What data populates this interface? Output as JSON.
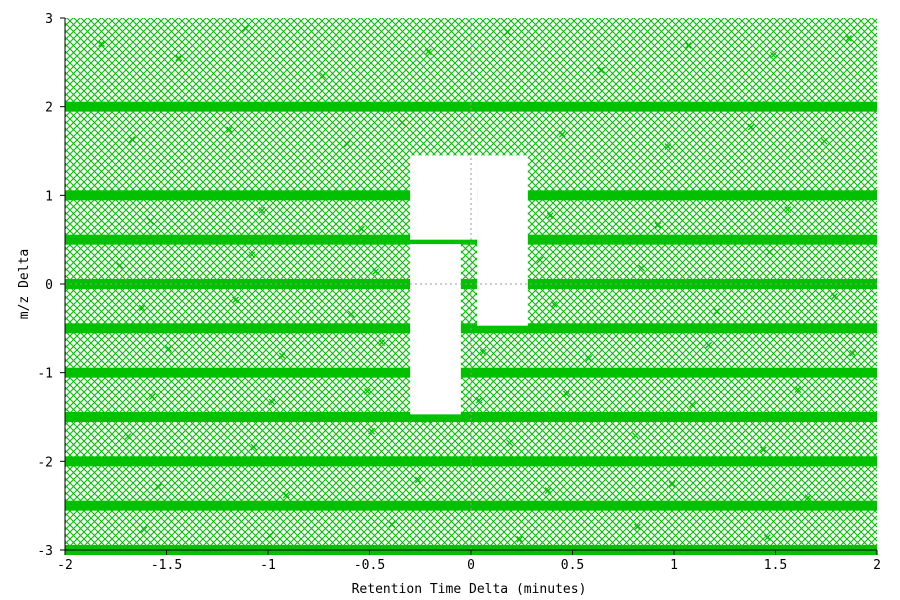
{
  "chart_data": {
    "type": "scatter",
    "title": "",
    "xlabel": "Retention Time Delta (minutes)",
    "ylabel": "m/z Delta",
    "xlim": [
      -2,
      2
    ],
    "ylim": [
      -3,
      3
    ],
    "xticks": [
      -2,
      -1.5,
      -1,
      -0.5,
      0,
      0.5,
      1,
      1.5,
      2
    ],
    "xtick_labels": [
      "-2",
      "-1.5",
      "-1",
      "-0.5",
      "0",
      "0.5",
      "1",
      "1.5",
      "2"
    ],
    "yticks": [
      -3,
      -2,
      -1,
      0,
      1,
      2,
      3
    ],
    "ytick_labels": [
      "-3",
      "-2",
      "-1",
      "0",
      "1",
      "2",
      "3"
    ],
    "marker": "x",
    "point_color": "#00c000",
    "crosshair_at_origin": true,
    "density": "dense uniform coverage of the full plotted range with horizontal banding",
    "dense_bands_mz": [
      2.0,
      1.0,
      0.5,
      0.0,
      -0.5,
      -1.0,
      -1.5,
      -2.0,
      -2.5,
      -3.0
    ],
    "empty_regions": [
      {
        "rt": [
          0.03,
          0.28
        ],
        "mz": [
          -0.47,
          1.45
        ]
      },
      {
        "rt": [
          -0.3,
          0.03
        ],
        "mz": [
          0.5,
          1.45
        ]
      },
      {
        "rt": [
          -0.3,
          -0.05
        ],
        "mz": [
          -1.47,
          0.45
        ]
      }
    ],
    "series": [
      {
        "marker": "x",
        "color": "#00c000",
        "points": [
          [
            -1.82,
            2.71
          ],
          [
            -1.44,
            2.55
          ],
          [
            -1.11,
            2.88
          ],
          [
            -0.73,
            2.35
          ],
          [
            -0.21,
            2.62
          ],
          [
            0.18,
            2.84
          ],
          [
            0.64,
            2.41
          ],
          [
            1.07,
            2.69
          ],
          [
            1.49,
            2.58
          ],
          [
            1.86,
            2.77
          ],
          [
            -1.95,
            1.98
          ],
          [
            -1.52,
            2.02
          ],
          [
            -0.96,
            2.0
          ],
          [
            -0.42,
            1.97
          ],
          [
            0.33,
            2.01
          ],
          [
            0.89,
            1.99
          ],
          [
            1.43,
            2.03
          ],
          [
            1.91,
            2.0
          ],
          [
            -1.67,
            1.63
          ],
          [
            -1.19,
            1.74
          ],
          [
            -0.61,
            1.58
          ],
          [
            -0.34,
            1.82
          ],
          [
            0.45,
            1.69
          ],
          [
            0.97,
            1.55
          ],
          [
            1.38,
            1.77
          ],
          [
            1.74,
            1.61
          ],
          [
            -1.88,
            1.01
          ],
          [
            -1.33,
            0.99
          ],
          [
            -0.82,
            1.02
          ],
          [
            -0.38,
            0.98
          ],
          [
            0.31,
            1.0
          ],
          [
            0.76,
            1.01
          ],
          [
            1.28,
            0.99
          ],
          [
            1.83,
            1.02
          ],
          [
            -1.58,
            0.71
          ],
          [
            -1.03,
            0.83
          ],
          [
            -0.54,
            0.62
          ],
          [
            0.39,
            0.77
          ],
          [
            0.92,
            0.66
          ],
          [
            1.56,
            0.84
          ],
          [
            -1.91,
            0.51
          ],
          [
            -1.27,
            0.49
          ],
          [
            -0.68,
            0.5
          ],
          [
            -0.33,
            0.52
          ],
          [
            0.36,
            0.5
          ],
          [
            1.12,
            0.51
          ],
          [
            1.71,
            0.49
          ],
          [
            -1.73,
            0.21
          ],
          [
            -1.08,
            0.33
          ],
          [
            -0.47,
            0.14
          ],
          [
            0.34,
            0.27
          ],
          [
            0.84,
            0.18
          ],
          [
            1.47,
            0.36
          ],
          [
            -1.97,
            0.0
          ],
          [
            -1.41,
            0.01
          ],
          [
            -0.88,
            -0.01
          ],
          [
            -0.35,
            0.0
          ],
          [
            0.32,
            0.01
          ],
          [
            1.01,
            0.0
          ],
          [
            1.64,
            -0.01
          ],
          [
            -1.62,
            -0.27
          ],
          [
            -1.16,
            -0.18
          ],
          [
            -0.59,
            -0.34
          ],
          [
            0.41,
            -0.23
          ],
          [
            1.21,
            -0.31
          ],
          [
            1.79,
            -0.14
          ],
          [
            -1.85,
            -0.5
          ],
          [
            -1.24,
            -0.49
          ],
          [
            -0.71,
            -0.51
          ],
          [
            -0.02,
            -0.52
          ],
          [
            0.22,
            -0.5
          ],
          [
            0.73,
            -0.49
          ],
          [
            1.36,
            -0.51
          ],
          [
            -1.49,
            -0.73
          ],
          [
            -0.93,
            -0.81
          ],
          [
            -0.44,
            -0.66
          ],
          [
            0.06,
            -0.77
          ],
          [
            0.58,
            -0.84
          ],
          [
            1.17,
            -0.69
          ],
          [
            1.88,
            -0.78
          ],
          [
            -1.78,
            -1.0
          ],
          [
            -1.21,
            -0.99
          ],
          [
            -0.64,
            -1.01
          ],
          [
            -0.32,
            -1.0
          ],
          [
            0.12,
            -1.0
          ],
          [
            0.69,
            -1.01
          ],
          [
            1.33,
            -0.99
          ],
          [
            1.92,
            -1.0
          ],
          [
            -1.57,
            -1.27
          ],
          [
            -0.98,
            -1.33
          ],
          [
            -0.51,
            -1.21
          ],
          [
            0.04,
            -1.31
          ],
          [
            0.47,
            -1.24
          ],
          [
            1.09,
            -1.36
          ],
          [
            1.61,
            -1.19
          ],
          [
            -1.93,
            -1.51
          ],
          [
            -1.36,
            -1.49
          ],
          [
            -0.77,
            -1.5
          ],
          [
            -0.21,
            -1.53
          ],
          [
            0.27,
            -1.5
          ],
          [
            0.86,
            -1.51
          ],
          [
            1.52,
            -1.49
          ],
          [
            -1.69,
            -1.72
          ],
          [
            -1.07,
            -1.84
          ],
          [
            -0.49,
            -1.66
          ],
          [
            0.19,
            -1.79
          ],
          [
            0.81,
            -1.71
          ],
          [
            1.44,
            -1.87
          ],
          [
            -1.84,
            -2.0
          ],
          [
            -1.29,
            -2.01
          ],
          [
            -0.63,
            -1.99
          ],
          [
            -0.08,
            -2.0
          ],
          [
            0.53,
            -2.01
          ],
          [
            1.14,
            -2.0
          ],
          [
            1.77,
            -1.99
          ],
          [
            -1.54,
            -2.29
          ],
          [
            -0.91,
            -2.38
          ],
          [
            -0.26,
            -2.21
          ],
          [
            0.38,
            -2.33
          ],
          [
            0.99,
            -2.26
          ],
          [
            1.66,
            -2.41
          ],
          [
            -1.76,
            -2.51
          ],
          [
            -1.13,
            -2.49
          ],
          [
            -0.56,
            -2.5
          ],
          [
            0.09,
            -2.52
          ],
          [
            0.71,
            -2.5
          ],
          [
            1.29,
            -2.49
          ],
          [
            1.89,
            -2.51
          ],
          [
            -1.61,
            -2.77
          ],
          [
            -0.99,
            -2.84
          ],
          [
            -0.39,
            -2.71
          ],
          [
            0.24,
            -2.88
          ],
          [
            0.82,
            -2.74
          ],
          [
            1.46,
            -2.86
          ],
          [
            -1.9,
            -2.99
          ],
          [
            -1.26,
            -2.98
          ],
          [
            -0.67,
            -2.99
          ],
          [
            -0.04,
            -2.98
          ],
          [
            0.61,
            -2.99
          ],
          [
            1.24,
            -2.98
          ],
          [
            1.95,
            -2.99
          ]
        ]
      }
    ]
  }
}
